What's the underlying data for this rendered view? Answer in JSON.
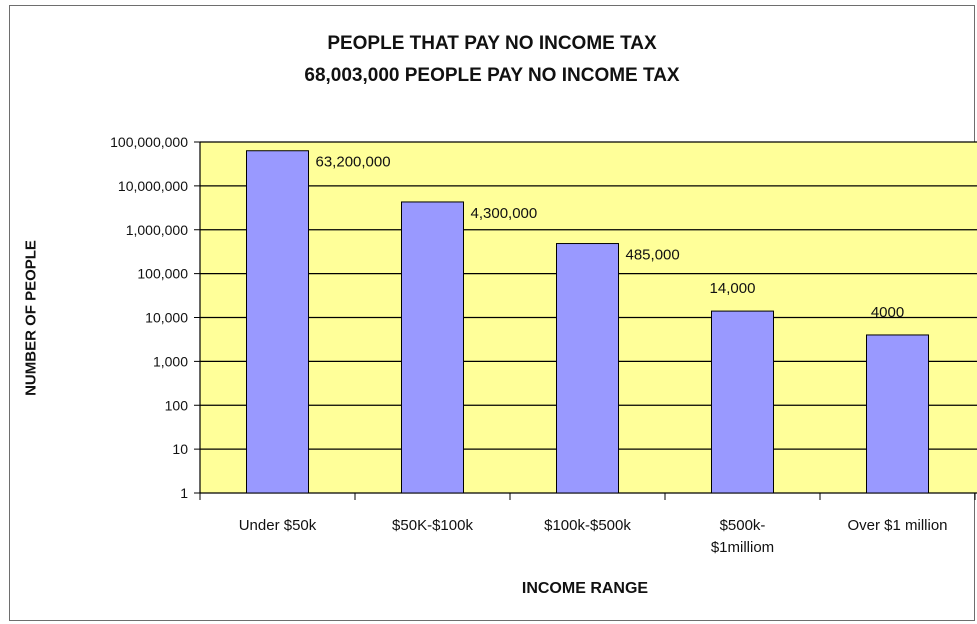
{
  "chart_data": {
    "type": "bar",
    "title": "PEOPLE THAT PAY NO INCOME TAX",
    "subtitle": "68,003,000 PEOPLE PAY NO INCOME TAX",
    "xlabel": "INCOME RANGE",
    "ylabel": "NUMBER OF PEOPLE",
    "yscale": "log",
    "ylim": [
      1,
      100000000
    ],
    "yticks": [
      {
        "value": 1,
        "label": "1"
      },
      {
        "value": 10,
        "label": "10"
      },
      {
        "value": 100,
        "label": "100"
      },
      {
        "value": 1000,
        "label": "1,000"
      },
      {
        "value": 10000,
        "label": "10,000"
      },
      {
        "value": 100000,
        "label": "100,000"
      },
      {
        "value": 1000000,
        "label": "1,000,000"
      },
      {
        "value": 10000000,
        "label": "10,000,000"
      },
      {
        "value": 100000000,
        "label": "100,000,000"
      }
    ],
    "categories": [
      [
        "Under $50k"
      ],
      [
        "$50K-$100k"
      ],
      [
        "$100k-$500k"
      ],
      [
        "$500k-",
        "$1milliom"
      ],
      [
        "Over $1 million"
      ]
    ],
    "values": [
      63200000,
      4300000,
      485000,
      14000,
      4000
    ],
    "data_labels": [
      "63,200,000",
      "4,300,000",
      "485,000",
      "14,000",
      "4000"
    ],
    "grid": true,
    "legend": "none",
    "colors": {
      "plot_background": "#ffff99",
      "bar_fill": "#9999ff",
      "bar_stroke": "#000000",
      "gridline": "#000000"
    }
  }
}
